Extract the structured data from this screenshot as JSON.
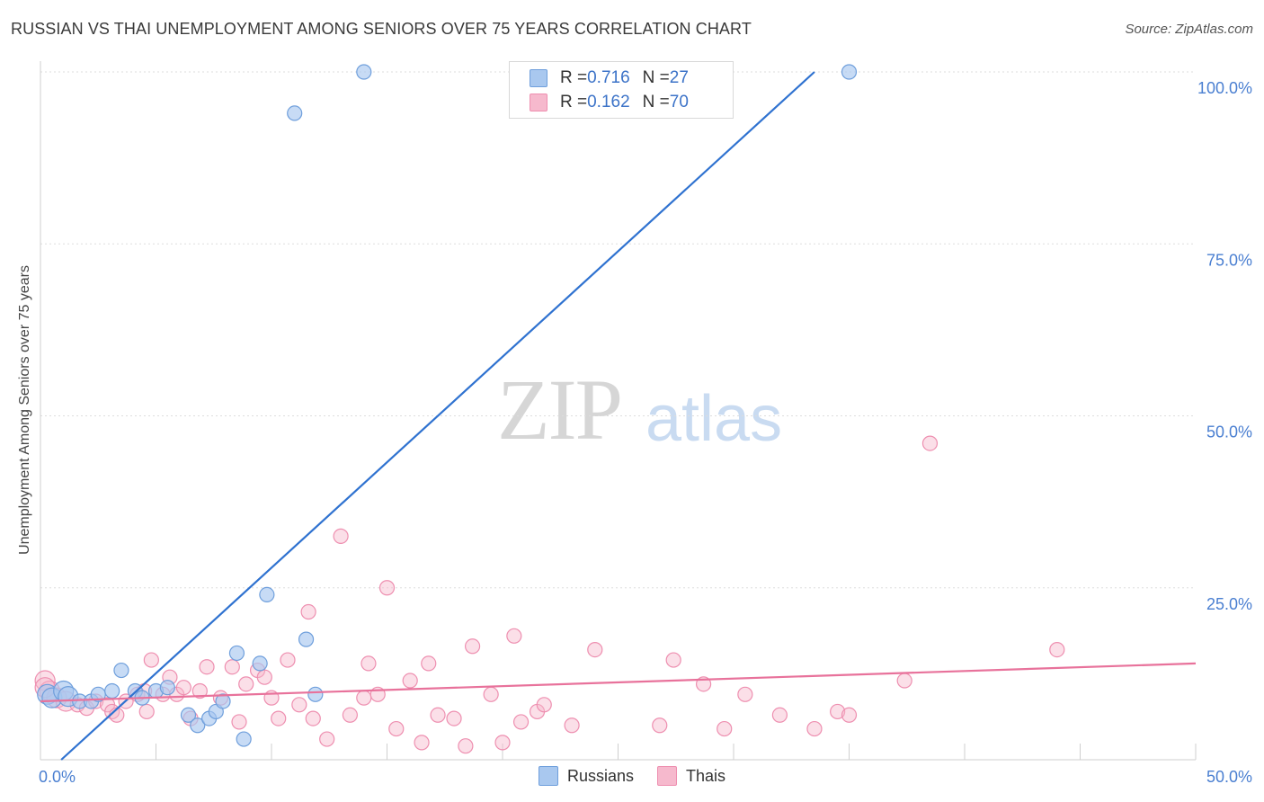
{
  "header": {
    "title": "RUSSIAN VS THAI UNEMPLOYMENT AMONG SENIORS OVER 75 YEARS CORRELATION CHART",
    "source": "Source: ZipAtlas.com"
  },
  "watermark": {
    "zip": "ZIP",
    "atlas": "atlas"
  },
  "colors": {
    "russians_fill": "#a9c8ef",
    "russians_stroke": "#6f9fdc",
    "russians_line": "#2f72d0",
    "thais_fill": "#f6b9cd",
    "thais_stroke": "#ee8fb0",
    "thais_line": "#e8729b",
    "tick_label": "#4a7fd1"
  },
  "legend": {
    "rows": [
      {
        "r_label": "R = ",
        "r_value": "0.716",
        "n_label": "N = ",
        "n_value": "27"
      },
      {
        "r_label": "R = ",
        "r_value": "0.162",
        "n_label": "N = ",
        "n_value": "70"
      }
    ],
    "bottom": [
      "Russians",
      "Thais"
    ]
  },
  "chart_data": {
    "type": "scatter",
    "title": "RUSSIAN VS THAI UNEMPLOYMENT AMONG SENIORS OVER 75 YEARS CORRELATION CHART",
    "xlabel": "",
    "ylabel": "Unemployment Among Seniors over 75 years",
    "xlim": [
      0,
      50
    ],
    "ylim": [
      0,
      100
    ],
    "x_tick_labels": [
      "0.0%",
      "50.0%"
    ],
    "y_ticks": [
      25,
      50,
      75,
      100
    ],
    "y_tick_labels": [
      "25.0%",
      "50.0%",
      "75.0%",
      "100.0%"
    ],
    "series": [
      {
        "name": "Russians",
        "r": 0.716,
        "n": 27,
        "trend": {
          "x": [
            0.9,
            33.5
          ],
          "y": [
            0,
            100
          ]
        },
        "points": [
          [
            0.3,
            9.5
          ],
          [
            0.5,
            9.0
          ],
          [
            1.0,
            10.0
          ],
          [
            1.2,
            9.2
          ],
          [
            1.7,
            8.5
          ],
          [
            2.2,
            8.5
          ],
          [
            2.5,
            9.5
          ],
          [
            3.1,
            10.0
          ],
          [
            3.5,
            13.0
          ],
          [
            4.1,
            10.0
          ],
          [
            4.4,
            9.0
          ],
          [
            5.0,
            10.0
          ],
          [
            5.5,
            10.5
          ],
          [
            6.4,
            6.5
          ],
          [
            6.8,
            5.0
          ],
          [
            7.3,
            6.0
          ],
          [
            7.6,
            7.0
          ],
          [
            7.9,
            8.5
          ],
          [
            8.5,
            15.5
          ],
          [
            8.8,
            3.0
          ],
          [
            9.5,
            14.0
          ],
          [
            9.8,
            24.0
          ],
          [
            11.0,
            94.0
          ],
          [
            11.5,
            17.5
          ],
          [
            11.9,
            9.5
          ],
          [
            14.0,
            100.0
          ],
          [
            35.0,
            100.0
          ]
        ]
      },
      {
        "name": "Thais",
        "r": 0.162,
        "n": 70,
        "trend": {
          "x": [
            0,
            50
          ],
          "y": [
            8.5,
            14.0
          ]
        },
        "points": [
          [
            0.2,
            11.5
          ],
          [
            0.4,
            10.0
          ],
          [
            0.7,
            9.0
          ],
          [
            1.1,
            8.5
          ],
          [
            1.6,
            8.0
          ],
          [
            2.0,
            7.5
          ],
          [
            2.4,
            8.5
          ],
          [
            2.9,
            8.0
          ],
          [
            3.1,
            7.0
          ],
          [
            3.3,
            6.5
          ],
          [
            3.7,
            8.5
          ],
          [
            4.2,
            9.5
          ],
          [
            4.5,
            10.0
          ],
          [
            4.6,
            7.0
          ],
          [
            4.8,
            14.5
          ],
          [
            5.3,
            9.5
          ],
          [
            5.6,
            12.0
          ],
          [
            5.9,
            9.5
          ],
          [
            6.2,
            10.5
          ],
          [
            6.5,
            6.0
          ],
          [
            6.9,
            10.0
          ],
          [
            7.2,
            13.5
          ],
          [
            7.8,
            9.0
          ],
          [
            8.3,
            13.5
          ],
          [
            8.6,
            5.5
          ],
          [
            8.9,
            11.0
          ],
          [
            9.4,
            13.0
          ],
          [
            9.7,
            12.0
          ],
          [
            10.0,
            9.0
          ],
          [
            10.3,
            6.0
          ],
          [
            10.7,
            14.5
          ],
          [
            11.2,
            8.0
          ],
          [
            11.6,
            21.5
          ],
          [
            11.8,
            6.0
          ],
          [
            12.4,
            3.0
          ],
          [
            13.0,
            32.5
          ],
          [
            13.4,
            6.5
          ],
          [
            14.0,
            9.0
          ],
          [
            14.2,
            14.0
          ],
          [
            14.6,
            9.5
          ],
          [
            15.0,
            25.0
          ],
          [
            15.4,
            4.5
          ],
          [
            16.0,
            11.5
          ],
          [
            16.5,
            2.5
          ],
          [
            16.8,
            14.0
          ],
          [
            17.2,
            6.5
          ],
          [
            17.9,
            6.0
          ],
          [
            18.4,
            2.0
          ],
          [
            18.7,
            16.5
          ],
          [
            19.5,
            9.5
          ],
          [
            20.0,
            2.5
          ],
          [
            20.5,
            18.0
          ],
          [
            20.8,
            5.5
          ],
          [
            21.5,
            7.0
          ],
          [
            21.8,
            8.0
          ],
          [
            23.0,
            5.0
          ],
          [
            24.0,
            16.0
          ],
          [
            26.8,
            5.0
          ],
          [
            27.4,
            14.5
          ],
          [
            28.7,
            11.0
          ],
          [
            29.6,
            4.5
          ],
          [
            30.5,
            9.5
          ],
          [
            32.0,
            6.5
          ],
          [
            33.5,
            4.5
          ],
          [
            34.5,
            7.0
          ],
          [
            35.0,
            6.5
          ],
          [
            37.4,
            11.5
          ],
          [
            38.5,
            46.0
          ],
          [
            44.0,
            16.0
          ],
          [
            0.2,
            10.5
          ]
        ]
      }
    ]
  }
}
